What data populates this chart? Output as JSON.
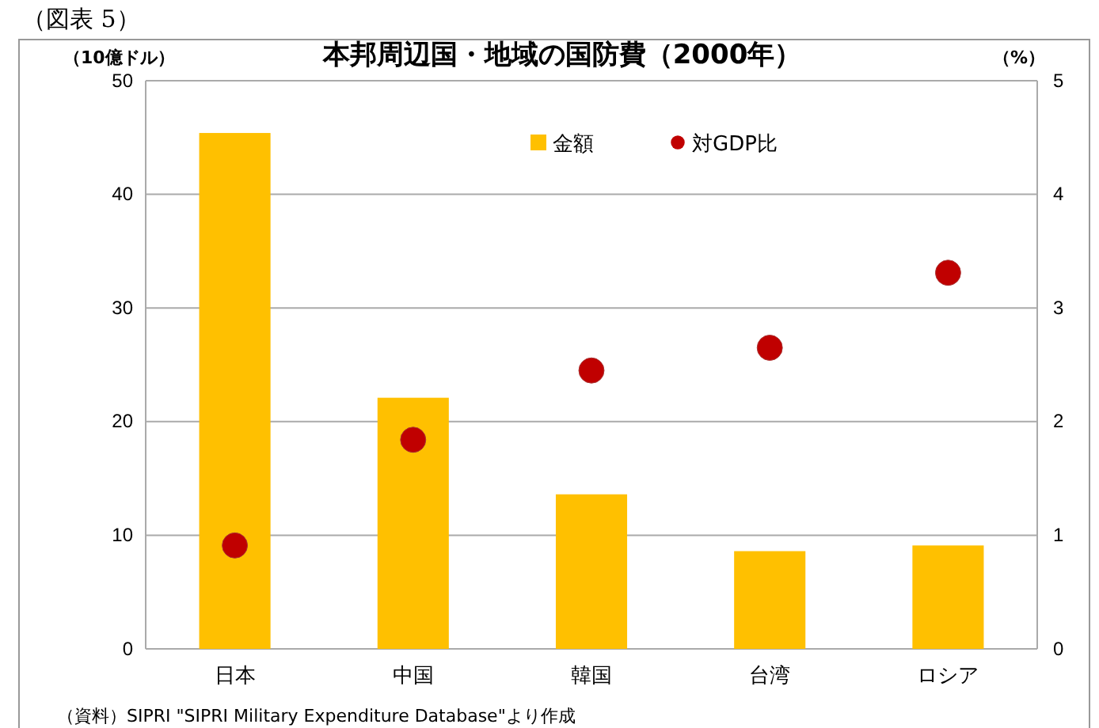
{
  "chart_data": {
    "type": "bar",
    "title": "本邦周辺国・地域の国防費（2000年）",
    "ylabel": "（10億ドル）",
    "y2label": "（%）",
    "categories": [
      "日本",
      "中国",
      "韓国",
      "台湾",
      "ロシア"
    ],
    "series": [
      {
        "name": "金額",
        "color": "#ffc000",
        "values": [
          45.4,
          22.1,
          13.6,
          8.6,
          9.1
        ]
      },
      {
        "name": "対GDP比",
        "type": "scatter",
        "axis": "y2",
        "color": "#c00000",
        "values": [
          0.91,
          1.84,
          2.45,
          2.65,
          3.31
        ]
      }
    ],
    "ylim": [
      0,
      50
    ],
    "yticks": [
      0,
      10,
      20,
      30,
      40,
      50
    ],
    "y2lim": [
      0,
      5
    ],
    "y2ticks": [
      0,
      1,
      2,
      3,
      4,
      5
    ],
    "grid": "y",
    "legend": "top",
    "marker": "circle",
    "annotations": [
      "（図表 5）",
      "（資料）SIPRI \"SIPRI Military Expenditure Database\"より作成"
    ]
  }
}
